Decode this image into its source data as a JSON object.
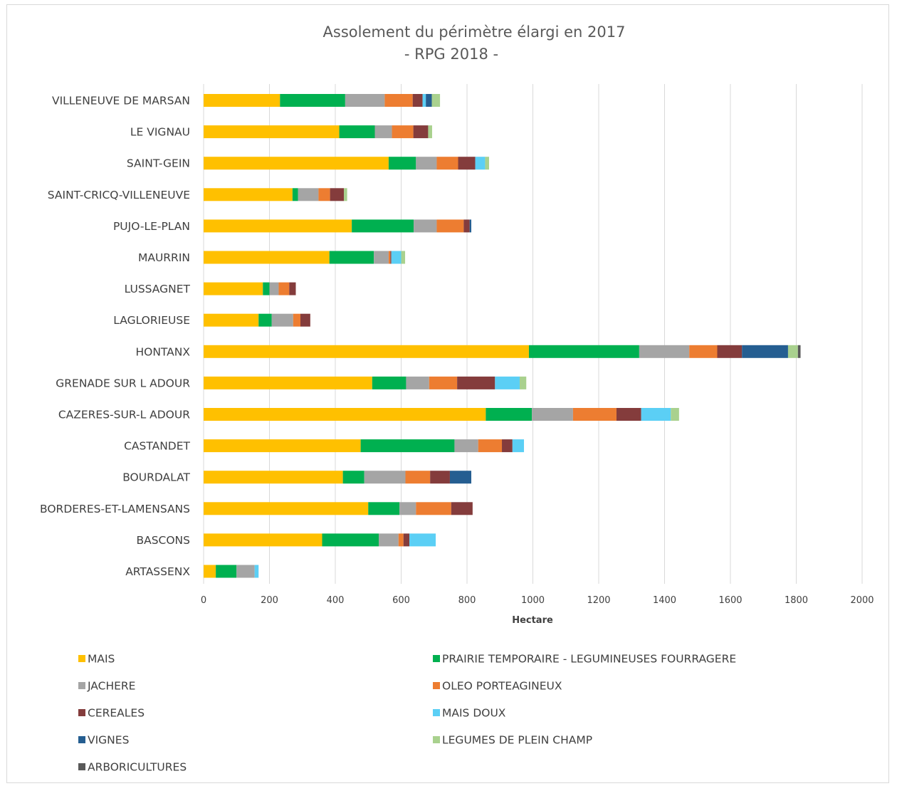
{
  "chart_data": {
    "type": "bar",
    "orientation": "horizontal",
    "stacked": true,
    "title": "Assolement du périmètre élargi en 2017",
    "subtitle": "- RPG 2018 -",
    "xlabel": "Hectare",
    "ylabel": "",
    "xlim": [
      0,
      2000
    ],
    "xticks": [
      "0",
      "200",
      "400",
      "600",
      "800",
      "1000",
      "1200",
      "1400",
      "1600",
      "1800",
      "2000"
    ],
    "grid": true,
    "legend_position": "bottom",
    "categories": [
      "VILLENEUVE DE MARSAN",
      "LE VIGNAU",
      "SAINT-GEIN",
      "SAINT-CRICQ-VILLENEUVE",
      "PUJO-LE-PLAN",
      "MAURRIN",
      "LUSSAGNET",
      "LAGLORIEUSE",
      "HONTANX",
      "GRENADE SUR L ADOUR",
      "CAZERES-SUR-L ADOUR",
      "CASTANDET",
      "BOURDALAT",
      "BORDERES-ET-LAMENSANS",
      "BASCONS",
      "ARTASSENX"
    ],
    "series": [
      {
        "name": "MAIS",
        "color": "#FFC000",
        "values": [
          232,
          412,
          562,
          270,
          450,
          382,
          180,
          167,
          988,
          512,
          857,
          477,
          423,
          500,
          360,
          37
        ]
      },
      {
        "name": "PRAIRIE TEMPORAIRE - LEGUMINEUSES FOURRAGERE",
        "color": "#00B050",
        "values": [
          198,
          108,
          83,
          17,
          188,
          135,
          20,
          40,
          335,
          103,
          140,
          285,
          65,
          95,
          172,
          63
        ]
      },
      {
        "name": "JACHERE",
        "color": "#A5A5A5",
        "values": [
          120,
          52,
          63,
          62,
          70,
          45,
          28,
          65,
          152,
          70,
          125,
          72,
          125,
          50,
          60,
          55
        ]
      },
      {
        "name": "OLEO PORTEAGINEUX",
        "color": "#ED7D31",
        "values": [
          85,
          65,
          65,
          35,
          82,
          5,
          32,
          22,
          85,
          85,
          132,
          72,
          75,
          107,
          15,
          0
        ]
      },
      {
        "name": "CEREALES",
        "color": "#843C3C",
        "values": [
          30,
          45,
          52,
          42,
          18,
          3,
          20,
          30,
          75,
          115,
          75,
          32,
          60,
          65,
          18,
          0
        ]
      },
      {
        "name": "MAIS DOUX",
        "color": "#5BCFF5",
        "values": [
          10,
          0,
          30,
          0,
          0,
          30,
          0,
          0,
          0,
          75,
          90,
          35,
          0,
          0,
          80,
          12
        ]
      },
      {
        "name": "VIGNES",
        "color": "#255E91",
        "values": [
          18,
          0,
          0,
          0,
          5,
          0,
          0,
          0,
          140,
          0,
          0,
          0,
          65,
          0,
          0,
          0
        ]
      },
      {
        "name": "LEGUMES DE PLEIN CHAMP",
        "color": "#A9D18E",
        "values": [
          25,
          12,
          12,
          10,
          0,
          12,
          0,
          0,
          30,
          20,
          25,
          0,
          0,
          0,
          0,
          0
        ]
      },
      {
        "name": "ARBORICULTURES",
        "color": "#595959",
        "values": [
          0,
          0,
          0,
          0,
          0,
          0,
          0,
          0,
          8,
          0,
          0,
          0,
          0,
          0,
          0,
          0
        ]
      }
    ]
  }
}
